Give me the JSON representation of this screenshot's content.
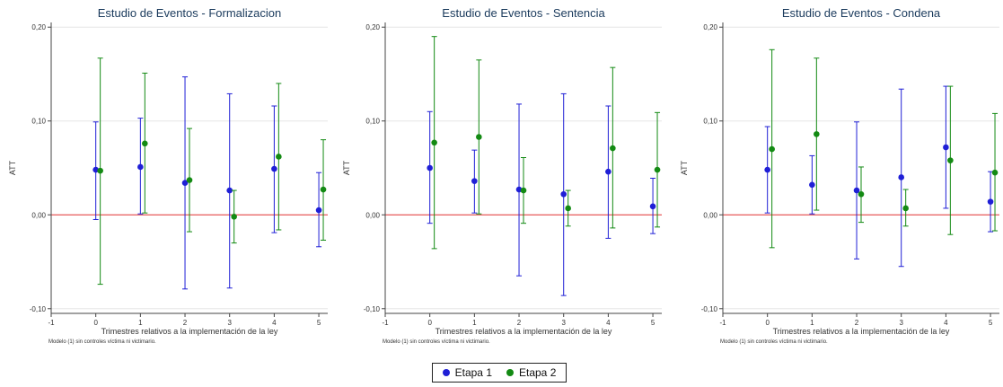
{
  "colors": {
    "etapa1": "#1f1fd6",
    "etapa2": "#138a13",
    "zero_line": "#e03030",
    "axis": "#444444"
  },
  "legend": {
    "etapa1": "Etapa 1",
    "etapa2": "Etapa 2"
  },
  "chart_data": [
    {
      "type": "scatter",
      "title": "Estudio de Eventos - Formalizacion",
      "ylabel": "ATT",
      "xlabel": "Trimestres relativos a la implementación de la ley",
      "note": "Modelo (1) sin controles víctima ni victimario.",
      "xlim": [
        -1,
        5.2
      ],
      "ylim": [
        -0.105,
        0.205
      ],
      "xticks": [
        "-1",
        "0",
        "1",
        "2",
        "3",
        "4",
        "5"
      ],
      "yticks": [
        "-0,10",
        "0,00",
        "0,10",
        "0,20"
      ],
      "grid": true,
      "legend_position": "bottom-center",
      "series": [
        {
          "name": "Etapa 1",
          "x": [
            0,
            1,
            2,
            3,
            4,
            5
          ],
          "y": [
            0.048,
            0.051,
            0.034,
            0.026,
            0.049,
            0.005
          ],
          "lo": [
            -0.005,
            0.001,
            -0.079,
            -0.078,
            -0.019,
            -0.034
          ],
          "hi": [
            0.099,
            0.103,
            0.147,
            0.129,
            0.116,
            0.045
          ]
        },
        {
          "name": "Etapa 2",
          "x": [
            0.1,
            1.1,
            2.1,
            3.1,
            4.1,
            5.1
          ],
          "y": [
            0.047,
            0.076,
            0.037,
            -0.002,
            0.062,
            0.027
          ],
          "lo": [
            -0.074,
            0.002,
            -0.018,
            -0.03,
            -0.016,
            -0.027
          ],
          "hi": [
            0.167,
            0.151,
            0.092,
            0.026,
            0.14,
            0.08
          ]
        }
      ]
    },
    {
      "type": "scatter",
      "title": "Estudio de Eventos - Sentencia",
      "ylabel": "ATT",
      "xlabel": "Trimestres relativos a la implementación de la ley",
      "note": "Modelo (1) sin controles víctima ni victimario.",
      "xlim": [
        -1,
        5.2
      ],
      "ylim": [
        -0.105,
        0.205
      ],
      "xticks": [
        "-1",
        "0",
        "1",
        "2",
        "3",
        "4",
        "5"
      ],
      "yticks": [
        "-0,10",
        "0,00",
        "0,10",
        "0,20"
      ],
      "grid": true,
      "legend_position": "bottom-center",
      "series": [
        {
          "name": "Etapa 1",
          "x": [
            0,
            1,
            2,
            3,
            4,
            5
          ],
          "y": [
            0.05,
            0.036,
            0.027,
            0.022,
            0.046,
            0.009
          ],
          "lo": [
            -0.009,
            0.002,
            -0.065,
            -0.086,
            -0.025,
            -0.02
          ],
          "hi": [
            0.11,
            0.069,
            0.118,
            0.129,
            0.116,
            0.039
          ]
        },
        {
          "name": "Etapa 2",
          "x": [
            0.1,
            1.1,
            2.1,
            3.1,
            4.1,
            5.1
          ],
          "y": [
            0.077,
            0.083,
            0.026,
            0.007,
            0.071,
            0.048
          ],
          "lo": [
            -0.036,
            0.001,
            -0.009,
            -0.012,
            -0.014,
            -0.013
          ],
          "hi": [
            0.19,
            0.165,
            0.061,
            0.026,
            0.157,
            0.109
          ]
        }
      ]
    },
    {
      "type": "scatter",
      "title": "Estudio de Eventos - Condena",
      "ylabel": "ATT",
      "xlabel": "Trimestres relativos a la implementación de la ley",
      "note": "Modelo (1) sin controles víctima ni victimario.",
      "xlim": [
        -1,
        5.2
      ],
      "ylim": [
        -0.105,
        0.205
      ],
      "xticks": [
        "-1",
        "0",
        "1",
        "2",
        "3",
        "4",
        "5"
      ],
      "yticks": [
        "-0,10",
        "0,00",
        "0,10",
        "0,20"
      ],
      "grid": true,
      "legend_position": "bottom-center",
      "series": [
        {
          "name": "Etapa 1",
          "x": [
            0,
            1,
            2,
            3,
            4,
            5
          ],
          "y": [
            0.048,
            0.032,
            0.026,
            0.04,
            0.072,
            0.014
          ],
          "lo": [
            0.002,
            0.001,
            -0.047,
            -0.055,
            0.007,
            -0.018
          ],
          "hi": [
            0.094,
            0.063,
            0.099,
            0.134,
            0.137,
            0.046
          ]
        },
        {
          "name": "Etapa 2",
          "x": [
            0.1,
            1.1,
            2.1,
            3.1,
            4.1,
            5.1
          ],
          "y": [
            0.07,
            0.086,
            0.022,
            0.007,
            0.058,
            0.045
          ],
          "lo": [
            -0.035,
            0.005,
            -0.008,
            -0.012,
            -0.021,
            -0.017
          ],
          "hi": [
            0.176,
            0.167,
            0.051,
            0.027,
            0.137,
            0.108
          ]
        }
      ]
    }
  ]
}
